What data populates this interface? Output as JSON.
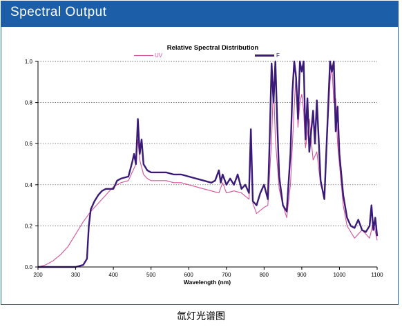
{
  "header": {
    "title": "Spectral Output"
  },
  "caption": "氙灯光谱图",
  "colors": {
    "header_bg": "#1c5fa8",
    "uv": "#d9509a",
    "f": "#3a1a78"
  },
  "chart_data": {
    "type": "line",
    "title": "Relative Spectral Distribution",
    "xlabel": "Wavelength (nm)",
    "ylabel": "",
    "xlim": [
      200,
      1100
    ],
    "ylim": [
      0,
      1.0
    ],
    "grid": "horizontal-dotted",
    "legend": "top",
    "xticks": [
      "200",
      "300",
      "400",
      "500",
      "600",
      "700",
      "800",
      "900",
      "1000",
      "1100"
    ],
    "yticks": [
      "0.0",
      "0.2",
      "0.4",
      "0.6",
      "0.8",
      "1.0"
    ],
    "series": [
      {
        "name": "UV",
        "color": "#d9509a",
        "x": [
          200,
          220,
          240,
          260,
          280,
          300,
          320,
          340,
          360,
          380,
          400,
          420,
          440,
          460,
          465,
          470,
          480,
          490,
          500,
          520,
          540,
          560,
          580,
          600,
          620,
          640,
          660,
          680,
          690,
          700,
          720,
          740,
          760,
          765,
          770,
          780,
          800,
          810,
          820,
          825,
          830,
          840,
          850,
          860,
          870,
          880,
          885,
          890,
          895,
          900,
          905,
          910,
          920,
          930,
          940,
          950,
          960,
          970,
          975,
          980,
          985,
          990,
          995,
          1000,
          1010,
          1020,
          1040,
          1060,
          1080,
          1090,
          1100
        ],
        "y": [
          0.0,
          0.01,
          0.03,
          0.06,
          0.1,
          0.16,
          0.22,
          0.27,
          0.31,
          0.35,
          0.39,
          0.41,
          0.42,
          0.5,
          0.62,
          0.52,
          0.45,
          0.43,
          0.42,
          0.42,
          0.42,
          0.41,
          0.41,
          0.4,
          0.39,
          0.38,
          0.37,
          0.36,
          0.41,
          0.36,
          0.37,
          0.36,
          0.33,
          0.57,
          0.31,
          0.26,
          0.29,
          0.3,
          0.62,
          0.9,
          0.62,
          0.38,
          0.3,
          0.24,
          0.4,
          0.78,
          0.95,
          0.68,
          0.8,
          0.84,
          0.76,
          0.58,
          0.72,
          0.52,
          0.56,
          0.4,
          0.35,
          0.72,
          0.9,
          0.98,
          0.8,
          0.82,
          0.6,
          0.5,
          0.3,
          0.2,
          0.14,
          0.18,
          0.14,
          0.22,
          0.13
        ]
      },
      {
        "name": "F",
        "color": "#3a1a78",
        "x": [
          200,
          300,
          320,
          330,
          335,
          340,
          350,
          360,
          370,
          380,
          400,
          410,
          420,
          440,
          450,
          455,
          460,
          465,
          470,
          475,
          480,
          490,
          500,
          520,
          540,
          560,
          580,
          600,
          620,
          640,
          660,
          670,
          680,
          685,
          690,
          700,
          710,
          720,
          730,
          740,
          750,
          760,
          765,
          770,
          780,
          790,
          800,
          810,
          815,
          820,
          825,
          830,
          835,
          840,
          850,
          860,
          870,
          875,
          880,
          885,
          890,
          895,
          900,
          905,
          910,
          915,
          920,
          930,
          935,
          940,
          950,
          960,
          970,
          975,
          980,
          985,
          990,
          995,
          1000,
          1010,
          1020,
          1030,
          1040,
          1050,
          1060,
          1070,
          1080,
          1085,
          1090,
          1095,
          1100
        ],
        "y": [
          0.0,
          0.0,
          0.01,
          0.04,
          0.2,
          0.28,
          0.32,
          0.35,
          0.37,
          0.38,
          0.38,
          0.42,
          0.43,
          0.44,
          0.51,
          0.55,
          0.5,
          0.72,
          0.55,
          0.62,
          0.5,
          0.47,
          0.46,
          0.46,
          0.46,
          0.45,
          0.45,
          0.44,
          0.43,
          0.42,
          0.41,
          0.42,
          0.47,
          0.41,
          0.45,
          0.4,
          0.43,
          0.4,
          0.45,
          0.38,
          0.4,
          0.36,
          0.67,
          0.32,
          0.3,
          0.36,
          0.4,
          0.33,
          0.63,
          0.99,
          0.8,
          1.0,
          0.7,
          0.44,
          0.3,
          0.27,
          0.55,
          0.85,
          1.0,
          0.92,
          0.72,
          1.0,
          0.95,
          1.0,
          0.62,
          0.82,
          0.56,
          0.76,
          0.6,
          0.81,
          0.42,
          0.33,
          0.78,
          1.0,
          0.95,
          1.0,
          0.66,
          0.78,
          0.55,
          0.35,
          0.24,
          0.2,
          0.19,
          0.23,
          0.18,
          0.17,
          0.2,
          0.3,
          0.18,
          0.24,
          0.15
        ]
      }
    ]
  }
}
